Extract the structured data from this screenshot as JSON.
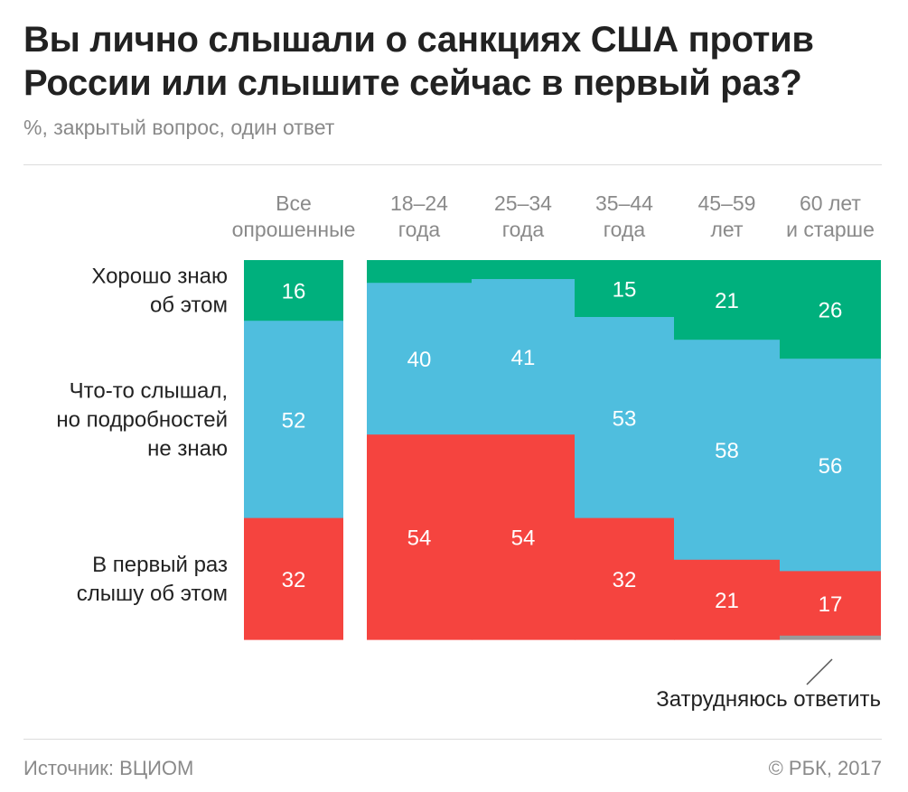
{
  "title": "Вы лично слышали о санкциях США против России или слышите сейчас в первый раз?",
  "subtitle": "%, закрытый вопрос, один ответ",
  "source": "Источник: ВЦИОМ",
  "copyright": "© РБК, 2017",
  "colors": {
    "know_well": "#00b07d",
    "heard_something": "#4fbede",
    "first_time": "#f5443f",
    "hard_to_say": "#9a9a9a"
  },
  "chart_data": {
    "type": "stacked-bar",
    "orientation": "vertical",
    "categories": [
      [
        "Все",
        "опрошенные"
      ],
      [
        "18–24",
        "года"
      ],
      [
        "25–34",
        "года"
      ],
      [
        "35–44",
        "года"
      ],
      [
        "45–59",
        "лет"
      ],
      [
        "60 лет",
        "и старше"
      ]
    ],
    "series": [
      {
        "name": [
          "Хорошо знаю",
          "об этом"
        ],
        "color": "#00b07d",
        "values": [
          16,
          6,
          5,
          15,
          21,
          26
        ],
        "labels": [
          "16",
          "",
          "",
          "15",
          "21",
          "26"
        ]
      },
      {
        "name": [
          "Что-то слышал,",
          "но подробностей",
          "не знаю"
        ],
        "color": "#4fbede",
        "values": [
          52,
          40,
          41,
          53,
          58,
          56
        ],
        "labels": [
          "52",
          "40",
          "41",
          "53",
          "58",
          "56"
        ]
      },
      {
        "name": [
          "В первый раз",
          "слышу об этом"
        ],
        "color": "#f5443f",
        "values": [
          32,
          54,
          54,
          32,
          21,
          17
        ],
        "labels": [
          "32",
          "54",
          "54",
          "32",
          "21",
          "17"
        ]
      },
      {
        "name": [
          "Затрудняюсь ответить"
        ],
        "color": "#9a9a9a",
        "values": [
          0,
          0,
          0,
          0,
          0,
          1
        ],
        "labels": [
          "",
          "",
          "",
          "",
          "",
          ""
        ]
      }
    ],
    "ylim": [
      0,
      100
    ]
  }
}
